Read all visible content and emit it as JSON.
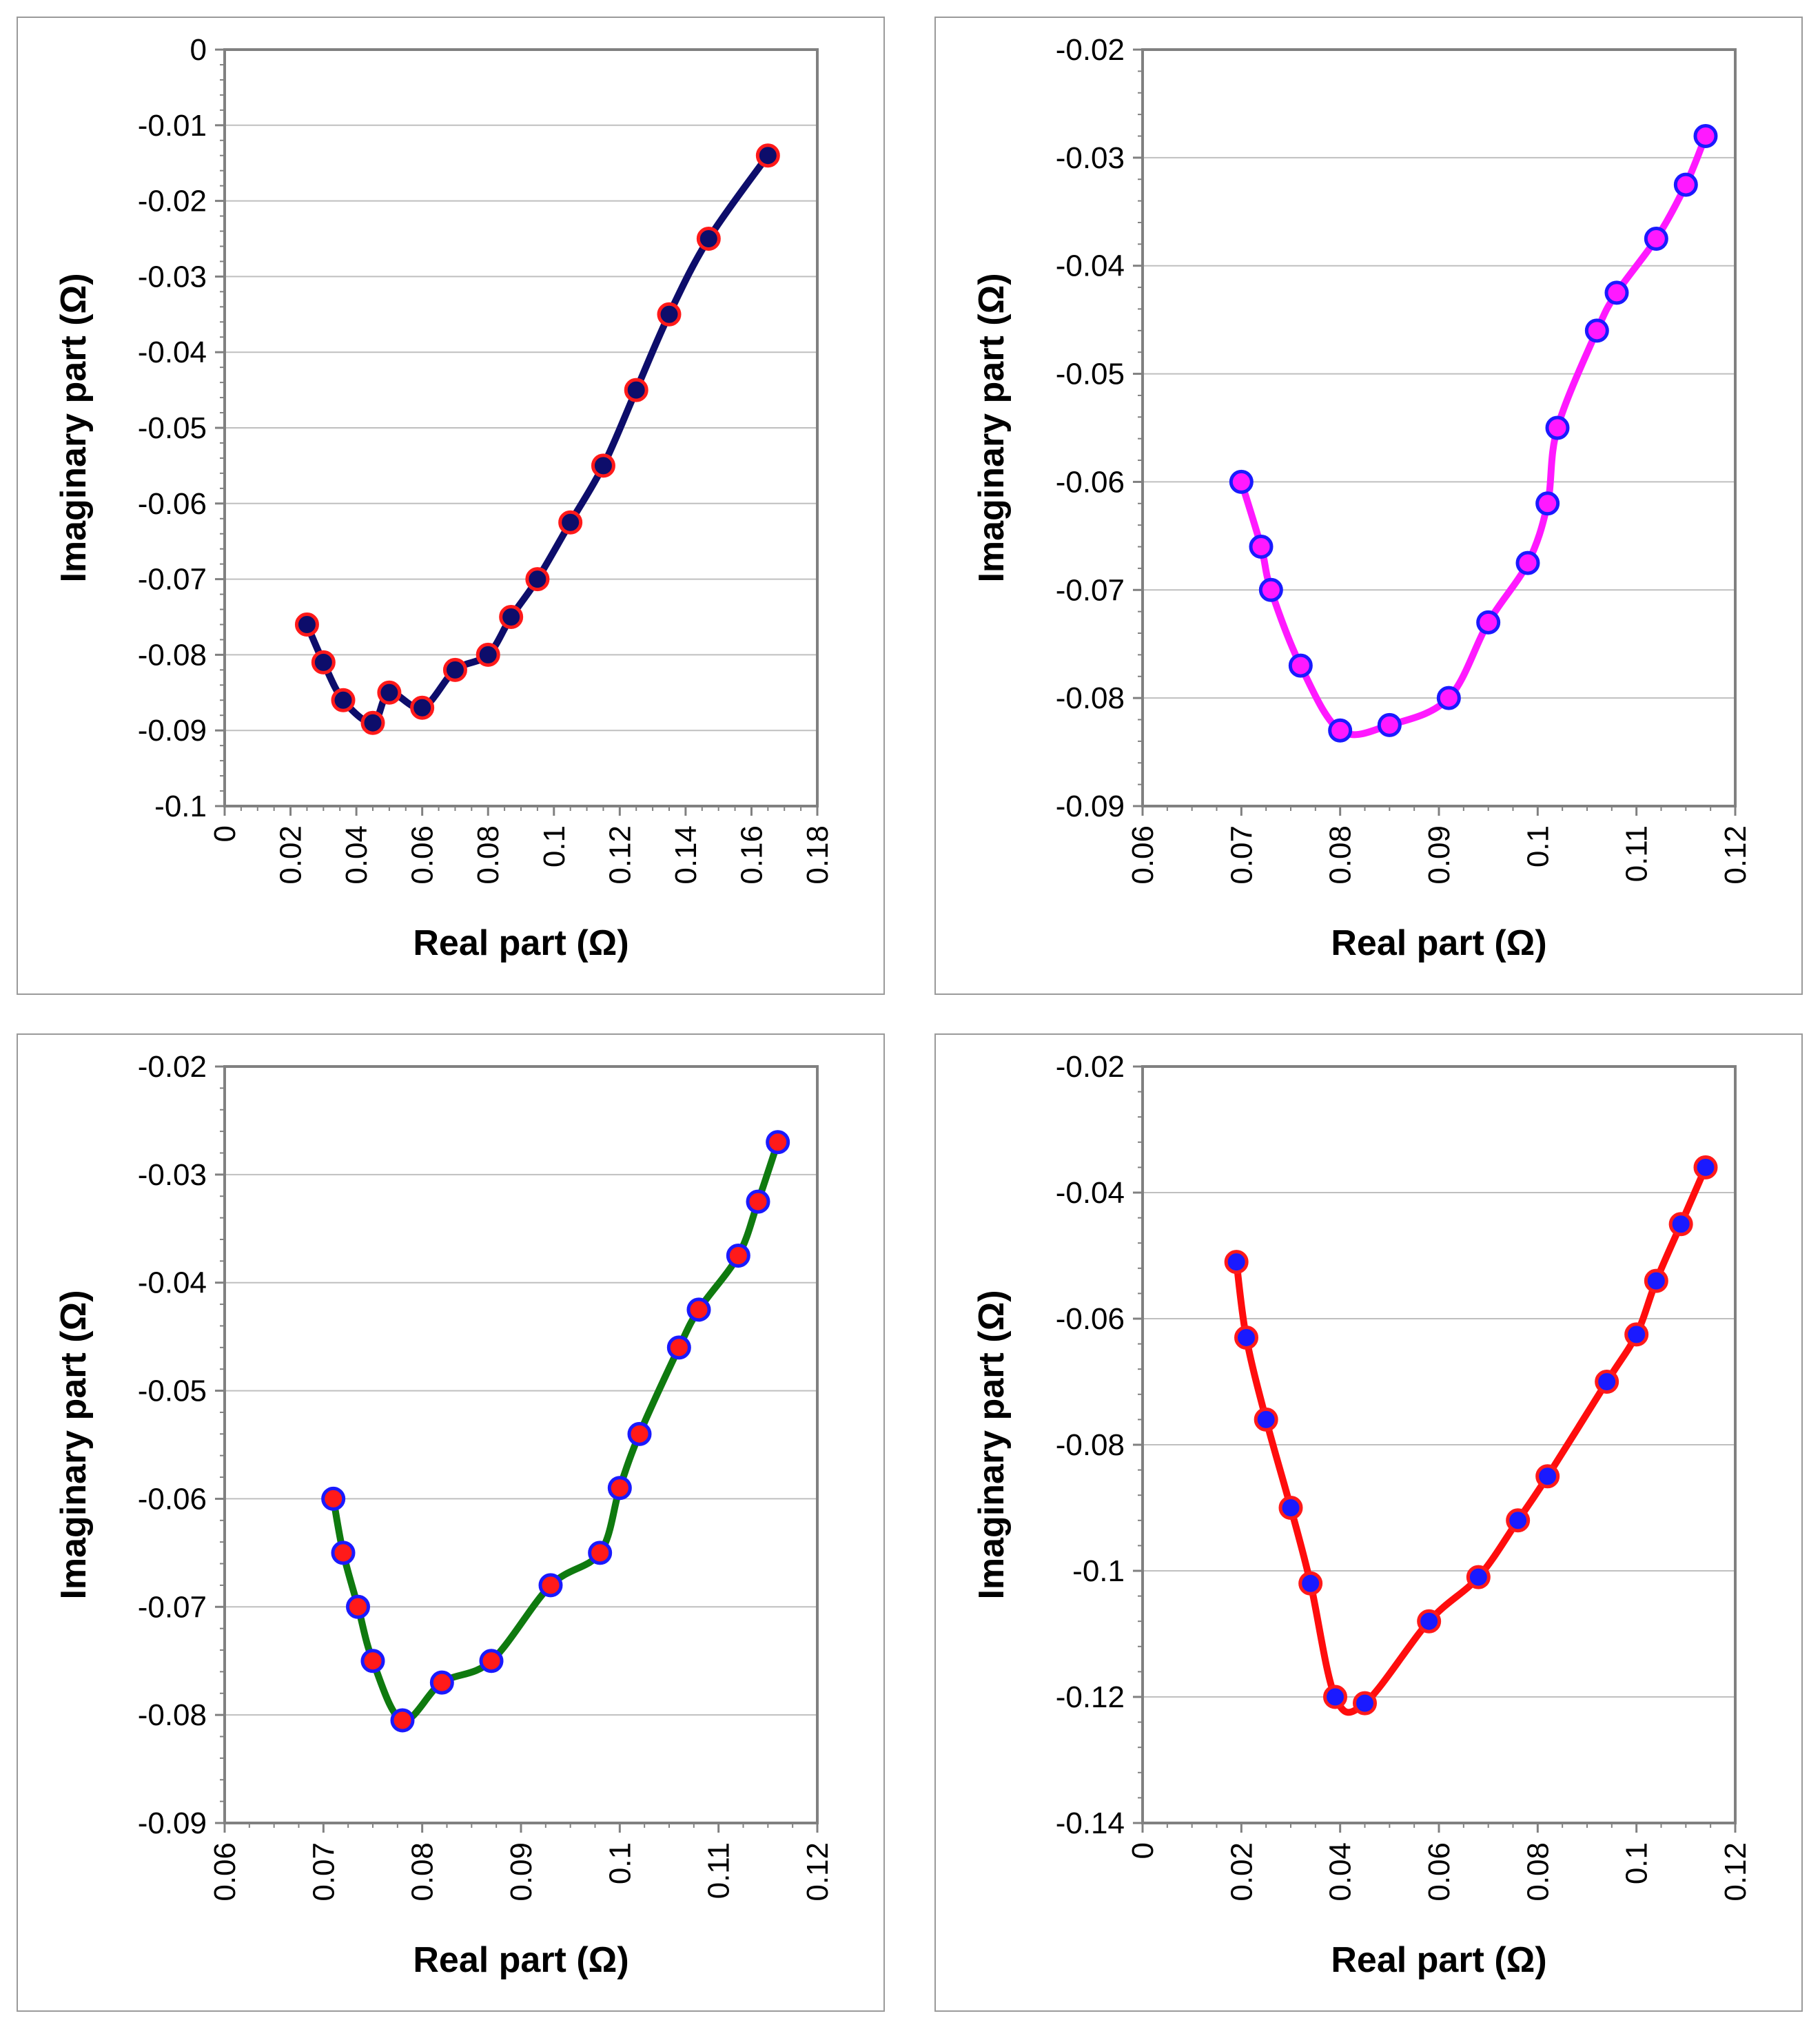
{
  "chart_data": [
    {
      "type": "line",
      "title": "",
      "xlabel": "Real part (Ω)",
      "ylabel": "Imaginary part (Ω)",
      "xlim": [
        0,
        0.18
      ],
      "ylim": [
        -0.1,
        0
      ],
      "xticks": [
        "0",
        "0.02",
        "0.04",
        "0.06",
        "0.08",
        "0.1",
        "0.12",
        "0.14",
        "0.16",
        "0.18"
      ],
      "yticks": [
        "0",
        "-0.01",
        "-0.02",
        "-0.03",
        "-0.04",
        "-0.05",
        "-0.06",
        "-0.07",
        "-0.08",
        "-0.09",
        "-0.1"
      ],
      "grid": true,
      "line_color": "#0d0d6b",
      "marker_fill": "#0d0d6b",
      "marker_edge": "#ff1a1a",
      "x": [
        0.025,
        0.03,
        0.036,
        0.045,
        0.05,
        0.06,
        0.07,
        0.08,
        0.087,
        0.095,
        0.105,
        0.115,
        0.125,
        0.135,
        0.147,
        0.165
      ],
      "y": [
        -0.076,
        -0.081,
        -0.086,
        -0.089,
        -0.085,
        -0.087,
        -0.082,
        -0.08,
        -0.075,
        -0.07,
        -0.0625,
        -0.055,
        -0.045,
        -0.035,
        -0.025,
        -0.014
      ]
    },
    {
      "type": "line",
      "title": "",
      "xlabel": "Real part (Ω)",
      "ylabel": "Imaginary part (Ω)",
      "xlim": [
        0.06,
        0.12
      ],
      "ylim": [
        -0.09,
        -0.02
      ],
      "xticks": [
        "0.06",
        "0.07",
        "0.08",
        "0.09",
        "0.1",
        "0.11",
        "0.12"
      ],
      "yticks": [
        "-0.02",
        "-0.03",
        "-0.04",
        "-0.05",
        "-0.06",
        "-0.07",
        "-0.08",
        "-0.09"
      ],
      "grid": true,
      "line_color": "#ff19ff",
      "marker_fill": "#ff19ff",
      "marker_edge": "#1a1aff",
      "x": [
        0.07,
        0.072,
        0.073,
        0.076,
        0.08,
        0.085,
        0.091,
        0.095,
        0.099,
        0.101,
        0.102,
        0.106,
        0.108,
        0.112,
        0.115,
        0.117
      ],
      "y": [
        -0.06,
        -0.066,
        -0.07,
        -0.077,
        -0.083,
        -0.0825,
        -0.08,
        -0.073,
        -0.0675,
        -0.062,
        -0.055,
        -0.046,
        -0.0425,
        -0.0375,
        -0.0325,
        -0.028
      ]
    },
    {
      "type": "line",
      "title": "",
      "xlabel": "Real part (Ω)",
      "ylabel": "Imaginary part (Ω)",
      "xlim": [
        0.06,
        0.12
      ],
      "ylim": [
        -0.09,
        -0.02
      ],
      "xticks": [
        "0.06",
        "0.07",
        "0.08",
        "0.09",
        "0.1",
        "0.11",
        "0.12"
      ],
      "yticks": [
        "-0.02",
        "-0.03",
        "-0.04",
        "-0.05",
        "-0.06",
        "-0.07",
        "-0.08",
        "-0.09"
      ],
      "grid": true,
      "line_color": "#0f7a0f",
      "marker_fill": "#ff1a1a",
      "marker_edge": "#1a1aff",
      "x": [
        0.071,
        0.072,
        0.0735,
        0.075,
        0.078,
        0.082,
        0.087,
        0.093,
        0.098,
        0.1,
        0.102,
        0.106,
        0.108,
        0.112,
        0.114,
        0.116
      ],
      "y": [
        -0.06,
        -0.065,
        -0.07,
        -0.075,
        -0.0805,
        -0.077,
        -0.075,
        -0.068,
        -0.065,
        -0.059,
        -0.054,
        -0.046,
        -0.0425,
        -0.0375,
        -0.0325,
        -0.027
      ]
    },
    {
      "type": "line",
      "title": "",
      "xlabel": "Real part (Ω)",
      "ylabel": "Imaginary part (Ω)",
      "xlim": [
        0,
        0.12
      ],
      "ylim": [
        -0.14,
        -0.02
      ],
      "xticks": [
        "0",
        "0.02",
        "0.04",
        "0.06",
        "0.08",
        "0.1",
        "0.12"
      ],
      "yticks": [
        "-0.02",
        "-0.04",
        "-0.06",
        "-0.08",
        "-0.1",
        "-0.12",
        "-0.14"
      ],
      "grid": true,
      "line_color": "#ff0d0d",
      "marker_fill": "#1a1aff",
      "marker_edge": "#ff1a1a",
      "x": [
        0.019,
        0.021,
        0.025,
        0.03,
        0.034,
        0.039,
        0.045,
        0.058,
        0.068,
        0.076,
        0.082,
        0.094,
        0.1,
        0.104,
        0.109,
        0.114
      ],
      "y": [
        -0.051,
        -0.063,
        -0.076,
        -0.09,
        -0.102,
        -0.12,
        -0.121,
        -0.108,
        -0.101,
        -0.092,
        -0.085,
        -0.07,
        -0.0625,
        -0.054,
        -0.045,
        -0.036
      ]
    }
  ]
}
